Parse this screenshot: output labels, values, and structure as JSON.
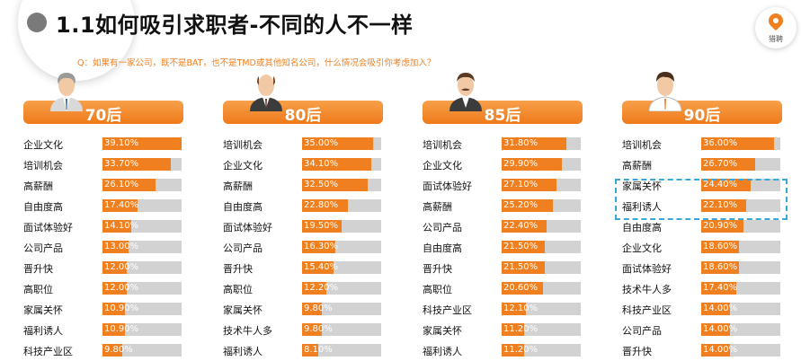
{
  "header": {
    "title": "1.1如何吸引求职者-不同的人不一样",
    "question": "Q：如果有一家公司，既不是BAT，也不是TMD或其他知名公司，什么情况会吸引你考虑加入？"
  },
  "logo": {
    "icon": "location-pin-icon",
    "text": "猎聘"
  },
  "colors": {
    "accent": "#f07f1f",
    "track": "#d2d2d2",
    "highlight": "#39a8d8"
  },
  "generations": [
    {
      "label": "70后",
      "avatar": "bald-gray-man-icon",
      "rows": [
        {
          "label": "企业文化",
          "value": "39.10%",
          "pct": 39.1
        },
        {
          "label": "培训机会",
          "value": "33.70%",
          "pct": 33.7
        },
        {
          "label": "高薪酬",
          "value": "26.10%",
          "pct": 26.1
        },
        {
          "label": "自由度高",
          "value": "17.40%",
          "pct": 17.4
        },
        {
          "label": "面试体验好",
          "value": "14.10%",
          "pct": 14.1
        },
        {
          "label": "公司产品",
          "value": "13.00%",
          "pct": 13.0
        },
        {
          "label": "晋升快",
          "value": "12.00%",
          "pct": 12.0
        },
        {
          "label": "高职位",
          "value": "12.00%",
          "pct": 12.0
        },
        {
          "label": "家属关怀",
          "value": "10.90%",
          "pct": 10.9
        },
        {
          "label": "福利诱人",
          "value": "10.90%",
          "pct": 10.9
        },
        {
          "label": "科技产业区",
          "value": "9.80%",
          "pct": 9.8
        }
      ]
    },
    {
      "label": "80后",
      "avatar": "balding-man-icon",
      "rows": [
        {
          "label": "培训机会",
          "value": "35.00%",
          "pct": 35.0
        },
        {
          "label": "企业文化",
          "value": "34.10%",
          "pct": 34.1
        },
        {
          "label": "高薪酬",
          "value": "32.50%",
          "pct": 32.5
        },
        {
          "label": "自由度高",
          "value": "22.80%",
          "pct": 22.8
        },
        {
          "label": "面试体验好",
          "value": "19.50%",
          "pct": 19.5
        },
        {
          "label": "公司产品",
          "value": "16.30%",
          "pct": 16.3
        },
        {
          "label": "晋升快",
          "value": "15.40%",
          "pct": 15.4
        },
        {
          "label": "高职位",
          "value": "12.20%",
          "pct": 12.2
        },
        {
          "label": "家属关怀",
          "value": "9.80%",
          "pct": 9.8
        },
        {
          "label": "技术牛人多",
          "value": "9.80%",
          "pct": 9.8
        },
        {
          "label": "福利诱人",
          "value": "8.10%",
          "pct": 8.1
        }
      ]
    },
    {
      "label": "85后",
      "avatar": "mustache-man-icon",
      "rows": [
        {
          "label": "培训机会",
          "value": "31.80%",
          "pct": 31.8
        },
        {
          "label": "企业文化",
          "value": "29.90%",
          "pct": 29.9
        },
        {
          "label": "面试体验好",
          "value": "27.10%",
          "pct": 27.1
        },
        {
          "label": "高薪酬",
          "value": "25.20%",
          "pct": 25.2
        },
        {
          "label": "公司产品",
          "value": "22.40%",
          "pct": 22.4
        },
        {
          "label": "自由度高",
          "value": "21.50%",
          "pct": 21.5
        },
        {
          "label": "晋升快",
          "value": "21.50%",
          "pct": 21.5
        },
        {
          "label": "高职位",
          "value": "20.60%",
          "pct": 20.6
        },
        {
          "label": "科技产业区",
          "value": "12.10%",
          "pct": 12.1
        },
        {
          "label": "家属关怀",
          "value": "11.20%",
          "pct": 11.2
        },
        {
          "label": "福利诱人",
          "value": "11.20%",
          "pct": 11.2
        }
      ]
    },
    {
      "label": "90后",
      "avatar": "young-man-icon",
      "rows": [
        {
          "label": "培训机会",
          "value": "36.00%",
          "pct": 36.0
        },
        {
          "label": "高薪酬",
          "value": "26.70%",
          "pct": 26.7
        },
        {
          "label": "家属关怀",
          "value": "24.40%",
          "pct": 24.4
        },
        {
          "label": "福利诱人",
          "value": "22.10%",
          "pct": 22.1
        },
        {
          "label": "自由度高",
          "value": "20.90%",
          "pct": 20.9
        },
        {
          "label": "企业文化",
          "value": "18.60%",
          "pct": 18.6
        },
        {
          "label": "面试体验好",
          "value": "18.60%",
          "pct": 18.6
        },
        {
          "label": "技术牛人多",
          "value": "17.40%",
          "pct": 17.4
        },
        {
          "label": "科技产业区",
          "value": "14.00%",
          "pct": 14.0
        },
        {
          "label": "公司产品",
          "value": "14.00%",
          "pct": 14.0
        },
        {
          "label": "晋升快",
          "value": "14.00%",
          "pct": 14.0
        }
      ]
    }
  ]
}
